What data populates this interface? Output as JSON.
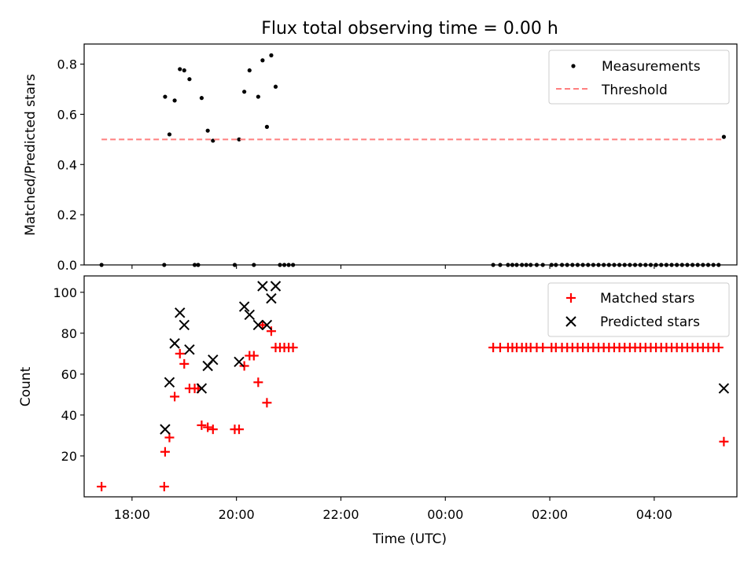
{
  "figure": {
    "title": "Flux total observing time = 0.00 h"
  },
  "chart_data": [
    {
      "type": "scatter",
      "title": "Flux total observing time = 0.00 h",
      "ylabel": "Matched/Predicted stars",
      "xlabel": "",
      "xlim": [
        "17:05",
        "05:35"
      ],
      "ylim": [
        0,
        0.88
      ],
      "x_axis": "Time (UTC), runs from one evening past midnight into the next morning",
      "xticks": [
        "18:00",
        "20:00",
        "22:00",
        "00:00",
        "02:00",
        "04:00"
      ],
      "xtick_labels_shown": false,
      "yticks": [
        0.0,
        0.2,
        0.4,
        0.6,
        0.8
      ],
      "ytick_labels": [
        "0.0",
        "0.2",
        "0.4",
        "0.6",
        "0.8"
      ],
      "legend": {
        "position": "upper right",
        "entries": [
          "Measurements",
          "Threshold"
        ]
      },
      "series": [
        {
          "name": "Measurements",
          "marker": "dot",
          "color": "#000000",
          "points": [
            [
              "17:25",
              0.0
            ],
            [
              "18:37",
              0.0
            ],
            [
              "18:38",
              0.67
            ],
            [
              "18:43",
              0.52
            ],
            [
              "18:49",
              0.655
            ],
            [
              "18:55",
              0.78
            ],
            [
              "19:00",
              0.775
            ],
            [
              "19:06",
              0.74
            ],
            [
              "19:12",
              0.0
            ],
            [
              "19:16",
              0.0
            ],
            [
              "19:20",
              0.665
            ],
            [
              "19:27",
              0.535
            ],
            [
              "19:33",
              0.495
            ],
            [
              "19:58",
              0.0
            ],
            [
              "20:03",
              0.5
            ],
            [
              "20:09",
              0.69
            ],
            [
              "20:15",
              0.775
            ],
            [
              "20:20",
              0.0
            ],
            [
              "20:25",
              0.67
            ],
            [
              "20:30",
              0.815
            ],
            [
              "20:35",
              0.55
            ],
            [
              "20:40",
              0.835
            ],
            [
              "20:45",
              0.71
            ],
            [
              "20:50",
              0.0
            ],
            [
              "20:55",
              0.0
            ],
            [
              "21:00",
              0.0
            ],
            [
              "21:05",
              0.0
            ],
            [
              "00:55",
              0.0
            ],
            [
              "01:03",
              0.0
            ],
            [
              "01:12",
              0.0
            ],
            [
              "01:17",
              0.0
            ],
            [
              "01:22",
              0.0
            ],
            [
              "01:28",
              0.0
            ],
            [
              "01:33",
              0.0
            ],
            [
              "01:38",
              0.0
            ],
            [
              "01:45",
              0.0
            ],
            [
              "01:52",
              0.0
            ],
            [
              "02:02",
              0.0
            ],
            [
              "02:07",
              0.0
            ],
            [
              "02:14",
              0.0
            ],
            [
              "02:20",
              0.0
            ],
            [
              "02:26",
              0.0
            ],
            [
              "02:32",
              0.0
            ],
            [
              "02:38",
              0.0
            ],
            [
              "02:44",
              0.0
            ],
            [
              "02:50",
              0.0
            ],
            [
              "02:56",
              0.0
            ],
            [
              "03:02",
              0.0
            ],
            [
              "03:08",
              0.0
            ],
            [
              "03:14",
              0.0
            ],
            [
              "03:20",
              0.0
            ],
            [
              "03:26",
              0.0
            ],
            [
              "03:32",
              0.0
            ],
            [
              "03:38",
              0.0
            ],
            [
              "03:44",
              0.0
            ],
            [
              "03:50",
              0.0
            ],
            [
              "03:56",
              0.0
            ],
            [
              "04:02",
              0.0
            ],
            [
              "04:08",
              0.0
            ],
            [
              "04:14",
              0.0
            ],
            [
              "04:20",
              0.0
            ],
            [
              "04:26",
              0.0
            ],
            [
              "04:32",
              0.0
            ],
            [
              "04:38",
              0.0
            ],
            [
              "04:44",
              0.0
            ],
            [
              "04:50",
              0.0
            ],
            [
              "04:56",
              0.0
            ],
            [
              "05:02",
              0.0
            ],
            [
              "05:08",
              0.0
            ],
            [
              "05:14",
              0.0
            ],
            [
              "05:20",
              0.51
            ]
          ]
        },
        {
          "name": "Threshold",
          "style": "dashed-line",
          "color": "#ff7f7f",
          "points": [
            [
              "17:25",
              0.5
            ],
            [
              "05:20",
              0.5
            ]
          ]
        }
      ]
    },
    {
      "type": "scatter",
      "title": "",
      "ylabel": "Count",
      "xlabel": "Time (UTC)",
      "xlim": [
        "17:05",
        "05:35"
      ],
      "ylim": [
        0,
        108
      ],
      "xticks": [
        "18:00",
        "20:00",
        "22:00",
        "00:00",
        "02:00",
        "04:00"
      ],
      "xtick_labels": [
        "18:00",
        "20:00",
        "22:00",
        "00:00",
        "02:00",
        "04:00"
      ],
      "yticks": [
        20,
        40,
        60,
        80,
        100
      ],
      "ytick_labels": [
        "20",
        "40",
        "60",
        "80",
        "100"
      ],
      "legend": {
        "position": "upper right",
        "entries": [
          "Matched stars",
          "Predicted stars"
        ]
      },
      "series": [
        {
          "name": "Matched stars",
          "marker": "plus",
          "color": "#ff0000",
          "points": [
            [
              "17:25",
              5
            ],
            [
              "18:37",
              5
            ],
            [
              "18:38",
              22
            ],
            [
              "18:43",
              29
            ],
            [
              "18:49",
              49
            ],
            [
              "18:55",
              70
            ],
            [
              "19:00",
              65
            ],
            [
              "19:06",
              53
            ],
            [
              "19:12",
              53
            ],
            [
              "19:16",
              53
            ],
            [
              "19:20",
              35
            ],
            [
              "19:27",
              34
            ],
            [
              "19:33",
              33
            ],
            [
              "19:58",
              33
            ],
            [
              "20:03",
              33
            ],
            [
              "20:09",
              64
            ],
            [
              "20:15",
              69
            ],
            [
              "20:20",
              69
            ],
            [
              "20:25",
              56
            ],
            [
              "20:30",
              84
            ],
            [
              "20:35",
              46
            ],
            [
              "20:40",
              81
            ],
            [
              "20:45",
              73
            ],
            [
              "20:50",
              73
            ],
            [
              "20:55",
              73
            ],
            [
              "21:00",
              73
            ],
            [
              "21:05",
              73
            ],
            [
              "00:55",
              73
            ],
            [
              "01:03",
              73
            ],
            [
              "01:12",
              73
            ],
            [
              "01:17",
              73
            ],
            [
              "01:22",
              73
            ],
            [
              "01:28",
              73
            ],
            [
              "01:33",
              73
            ],
            [
              "01:38",
              73
            ],
            [
              "01:45",
              73
            ],
            [
              "01:52",
              73
            ],
            [
              "02:02",
              73
            ],
            [
              "02:07",
              73
            ],
            [
              "02:14",
              73
            ],
            [
              "02:20",
              73
            ],
            [
              "02:26",
              73
            ],
            [
              "02:32",
              73
            ],
            [
              "02:38",
              73
            ],
            [
              "02:44",
              73
            ],
            [
              "02:50",
              73
            ],
            [
              "02:56",
              73
            ],
            [
              "03:02",
              73
            ],
            [
              "03:08",
              73
            ],
            [
              "03:14",
              73
            ],
            [
              "03:20",
              73
            ],
            [
              "03:26",
              73
            ],
            [
              "03:32",
              73
            ],
            [
              "03:38",
              73
            ],
            [
              "03:44",
              73
            ],
            [
              "03:50",
              73
            ],
            [
              "03:56",
              73
            ],
            [
              "04:02",
              73
            ],
            [
              "04:08",
              73
            ],
            [
              "04:14",
              73
            ],
            [
              "04:20",
              73
            ],
            [
              "04:26",
              73
            ],
            [
              "04:32",
              73
            ],
            [
              "04:38",
              73
            ],
            [
              "04:44",
              73
            ],
            [
              "04:50",
              73
            ],
            [
              "04:56",
              73
            ],
            [
              "05:02",
              73
            ],
            [
              "05:08",
              73
            ],
            [
              "05:14",
              73
            ],
            [
              "05:20",
              27
            ]
          ]
        },
        {
          "name": "Predicted stars",
          "marker": "x",
          "color": "#000000",
          "points": [
            [
              "18:38",
              33
            ],
            [
              "18:43",
              56
            ],
            [
              "18:49",
              75
            ],
            [
              "18:55",
              90
            ],
            [
              "19:00",
              84
            ],
            [
              "19:06",
              72
            ],
            [
              "19:20",
              53
            ],
            [
              "19:27",
              64
            ],
            [
              "19:33",
              67
            ],
            [
              "20:03",
              66
            ],
            [
              "20:09",
              93
            ],
            [
              "20:15",
              89
            ],
            [
              "20:25",
              84
            ],
            [
              "20:30",
              103
            ],
            [
              "20:35",
              84
            ],
            [
              "20:40",
              97
            ],
            [
              "20:45",
              103
            ],
            [
              "05:20",
              53
            ]
          ]
        }
      ]
    }
  ]
}
